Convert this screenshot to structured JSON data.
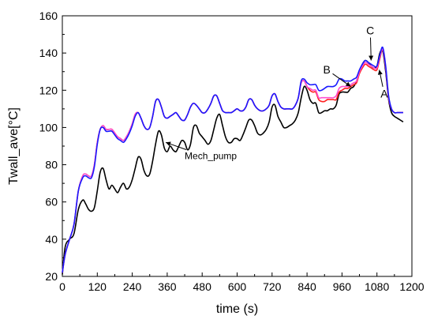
{
  "chart_data": {
    "type": "line",
    "title": "",
    "xlabel": "time (s)",
    "ylabel": "Twall_ave[°C]",
    "xlim": [
      0,
      1200
    ],
    "ylim": [
      20,
      160
    ],
    "xticks": [
      0,
      120,
      240,
      360,
      480,
      600,
      720,
      840,
      960,
      1080,
      1200
    ],
    "yticks": [
      20,
      40,
      60,
      80,
      100,
      120,
      140,
      160
    ],
    "grid": false,
    "legend": "none",
    "series": [
      {
        "name": "Mech_pump",
        "color": "#000000",
        "x": [
          0,
          10,
          25,
          40,
          55,
          70,
          80,
          90,
          100,
          110,
          120,
          130,
          140,
          150,
          160,
          170,
          180,
          190,
          200,
          210,
          220,
          230,
          240,
          250,
          260,
          270,
          280,
          290,
          300,
          310,
          320,
          330,
          340,
          350,
          360,
          370,
          380,
          390,
          400,
          410,
          420,
          430,
          440,
          450,
          460,
          470,
          480,
          490,
          500,
          510,
          520,
          530,
          540,
          550,
          560,
          570,
          580,
          590,
          600,
          610,
          620,
          630,
          640,
          650,
          660,
          670,
          680,
          690,
          700,
          710,
          720,
          730,
          740,
          750,
          760,
          770,
          780,
          790,
          800,
          810,
          820,
          830,
          840,
          850,
          860,
          870,
          880,
          890,
          900,
          910,
          920,
          930,
          940,
          950,
          960,
          970,
          980,
          990,
          1000,
          1010,
          1020,
          1030,
          1040,
          1050,
          1060,
          1070,
          1080,
          1090,
          1100,
          1110,
          1120,
          1130,
          1140,
          1150,
          1160,
          1170
        ],
        "y": [
          21,
          36,
          40,
          43,
          56,
          61,
          59,
          56,
          55,
          57,
          66,
          76,
          78,
          72,
          67,
          69,
          67,
          65,
          68,
          70,
          67,
          68,
          72,
          78,
          84,
          83,
          77,
          74,
          75,
          82,
          91,
          98,
          96,
          89,
          87,
          90,
          88,
          87,
          90,
          93,
          92,
          88,
          91,
          100,
          101,
          97,
          95,
          93,
          91,
          93,
          99,
          105,
          107,
          101,
          95,
          92,
          92,
          94,
          94,
          93,
          96,
          100,
          104,
          104,
          101,
          97,
          96,
          97,
          99,
          103,
          111,
          112,
          106,
          103,
          100,
          100,
          101,
          102,
          104,
          108,
          116,
          122,
          120,
          115,
          113,
          113,
          108,
          108,
          109,
          109,
          110,
          110,
          112,
          118,
          119,
          119,
          119,
          121,
          122,
          125,
          130,
          134,
          136,
          135,
          133,
          132,
          133,
          140,
          141,
          130,
          115,
          108,
          106,
          105,
          104,
          103
        ]
      },
      {
        "name": "A",
        "color": "#ff2020",
        "x": [
          0,
          10,
          25,
          40,
          55,
          70,
          80,
          90,
          100,
          110,
          120,
          130,
          140,
          150,
          160,
          170,
          180,
          190,
          200,
          210,
          220,
          230,
          240,
          250,
          260,
          270,
          280,
          290,
          300,
          310,
          320,
          330,
          340,
          350,
          360,
          370,
          380,
          390,
          400,
          410,
          420,
          430,
          440,
          450,
          460,
          470,
          480,
          490,
          500,
          510,
          520,
          530,
          540,
          550,
          560,
          570,
          580,
          590,
          600,
          610,
          620,
          630,
          640,
          650,
          660,
          670,
          680,
          690,
          700,
          710,
          720,
          730,
          740,
          750,
          760,
          770,
          780,
          790,
          800,
          810,
          820,
          830,
          840,
          850,
          860,
          870,
          880,
          890,
          900,
          910,
          920,
          930,
          940,
          950,
          960,
          970,
          980,
          990,
          1000,
          1010,
          1020,
          1030,
          1040,
          1050,
          1060,
          1070,
          1080,
          1090,
          1100,
          1110,
          1120,
          1130,
          1140,
          1150,
          1160,
          1170
        ],
        "y": [
          22,
          32,
          40,
          48,
          66,
          74,
          75,
          74,
          74,
          80,
          92,
          99,
          101,
          99,
          99,
          99,
          97,
          95,
          94,
          93,
          95,
          98,
          102,
          107,
          108,
          105,
          101,
          99,
          100,
          106,
          114,
          115,
          111,
          106,
          105,
          106,
          107,
          108,
          106,
          104,
          104,
          107,
          111,
          113,
          112,
          110,
          108,
          108,
          110,
          113,
          117,
          117,
          113,
          109,
          108,
          108,
          108,
          109,
          110,
          109,
          109,
          111,
          115,
          115,
          112,
          110,
          109,
          109,
          110,
          112,
          117,
          118,
          114,
          111,
          110,
          110,
          110,
          110,
          112,
          116,
          124,
          125,
          122,
          120,
          119,
          119,
          115,
          114,
          114,
          115,
          115,
          115,
          115,
          119,
          120,
          121,
          121,
          122,
          123,
          124,
          129,
          132,
          134,
          133,
          132,
          131,
          131,
          137,
          142,
          132,
          116,
          110,
          108,
          108,
          108,
          108
        ]
      },
      {
        "name": "B",
        "color": "#ff4fd0",
        "x": [
          0,
          10,
          25,
          40,
          55,
          70,
          80,
          90,
          100,
          110,
          120,
          130,
          140,
          150,
          160,
          170,
          180,
          190,
          200,
          210,
          220,
          230,
          240,
          250,
          260,
          270,
          280,
          290,
          300,
          310,
          320,
          330,
          340,
          350,
          360,
          370,
          380,
          390,
          400,
          410,
          420,
          430,
          440,
          450,
          460,
          470,
          480,
          490,
          500,
          510,
          520,
          530,
          540,
          550,
          560,
          570,
          580,
          590,
          600,
          610,
          620,
          630,
          640,
          650,
          660,
          670,
          680,
          690,
          700,
          710,
          720,
          730,
          740,
          750,
          760,
          770,
          780,
          790,
          800,
          810,
          820,
          830,
          840,
          850,
          860,
          870,
          880,
          890,
          900,
          910,
          920,
          930,
          940,
          950,
          960,
          970,
          980,
          990,
          1000,
          1010,
          1020,
          1030,
          1040,
          1050,
          1060,
          1070,
          1080,
          1090,
          1100,
          1110,
          1120,
          1130,
          1140,
          1150,
          1160,
          1170
        ],
        "y": [
          22,
          32,
          40,
          48,
          66,
          74,
          75,
          74,
          74,
          80,
          92,
          99,
          101,
          99,
          99,
          99,
          97,
          95,
          94,
          93,
          95,
          98,
          102,
          107,
          108,
          105,
          101,
          99,
          100,
          106,
          114,
          115,
          111,
          106,
          105,
          106,
          107,
          108,
          106,
          104,
          104,
          107,
          111,
          113,
          112,
          110,
          108,
          108,
          110,
          113,
          117,
          117,
          113,
          109,
          108,
          108,
          108,
          109,
          110,
          109,
          109,
          111,
          115,
          115,
          112,
          110,
          109,
          109,
          110,
          112,
          117,
          118,
          114,
          111,
          110,
          110,
          110,
          110,
          112,
          116,
          124,
          125,
          122,
          121,
          120,
          120,
          116,
          116,
          116,
          116,
          116,
          116,
          117,
          121,
          122,
          122,
          122,
          123,
          124,
          125,
          130,
          133,
          135,
          134,
          133,
          132,
          132,
          138,
          142,
          132,
          116,
          110,
          108,
          108,
          108,
          108
        ]
      },
      {
        "name": "C",
        "color": "#1a1aff",
        "x": [
          0,
          10,
          25,
          40,
          55,
          70,
          80,
          90,
          100,
          110,
          120,
          130,
          140,
          150,
          160,
          170,
          180,
          190,
          200,
          210,
          220,
          230,
          240,
          250,
          260,
          270,
          280,
          290,
          300,
          310,
          320,
          330,
          340,
          350,
          360,
          370,
          380,
          390,
          400,
          410,
          420,
          430,
          440,
          450,
          460,
          470,
          480,
          490,
          500,
          510,
          520,
          530,
          540,
          550,
          560,
          570,
          580,
          590,
          600,
          610,
          620,
          630,
          640,
          650,
          660,
          670,
          680,
          690,
          700,
          710,
          720,
          730,
          740,
          750,
          760,
          770,
          780,
          790,
          800,
          810,
          820,
          830,
          840,
          850,
          860,
          870,
          880,
          890,
          900,
          910,
          920,
          930,
          940,
          950,
          960,
          970,
          980,
          990,
          1000,
          1010,
          1020,
          1030,
          1040,
          1050,
          1060,
          1070,
          1080,
          1090,
          1100,
          1110,
          1120,
          1130,
          1140,
          1150,
          1160,
          1170
        ],
        "y": [
          22,
          32,
          40,
          48,
          66,
          73,
          74,
          73,
          73,
          79,
          91,
          99,
          100,
          98,
          98,
          98,
          96,
          94,
          93,
          92,
          94,
          97,
          101,
          106,
          108,
          105,
          101,
          99,
          100,
          106,
          114,
          115,
          111,
          106,
          105,
          106,
          107,
          108,
          106,
          104,
          104,
          107,
          111,
          113,
          112,
          110,
          108,
          108,
          110,
          113,
          117,
          117,
          113,
          109,
          108,
          108,
          108,
          109,
          110,
          109,
          109,
          111,
          115,
          115,
          112,
          110,
          109,
          109,
          110,
          112,
          117,
          118,
          114,
          111,
          110,
          110,
          110,
          110,
          112,
          116,
          125,
          126,
          124,
          123,
          123,
          123,
          120,
          120,
          121,
          122,
          122,
          122,
          123,
          126,
          126,
          125,
          125,
          125,
          126,
          127,
          131,
          134,
          136,
          135,
          134,
          133,
          133,
          139,
          143,
          133,
          117,
          110,
          108,
          108,
          108,
          108
        ]
      }
    ],
    "annotations": [
      {
        "text": "Mech_pump",
        "x": 420,
        "y": 83,
        "arrow_to": [
          355,
          92
        ]
      },
      {
        "text": "A",
        "x": 1105,
        "y": 116,
        "arrow_to": [
          1088,
          131
        ]
      },
      {
        "text": "B",
        "x": 908,
        "y": 129,
        "arrow_to": [
          990,
          122
        ]
      },
      {
        "text": "C",
        "x": 1057,
        "y": 150,
        "arrow_to": [
          1060,
          136
        ]
      }
    ]
  }
}
